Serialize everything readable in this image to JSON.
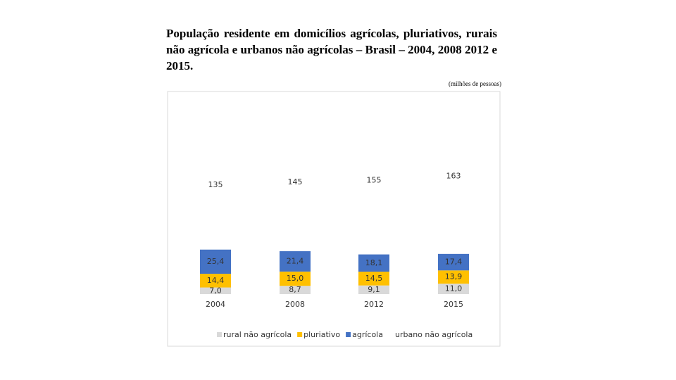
{
  "chart_data": {
    "type": "stacked_bar",
    "title": "População residente em domicílios agrícolas, pluriativos, rurais não agrícola e urbanos não agrícolas – Brasil – 2004, 2008 2012 e 2015.",
    "subtitle": "(milhões de pessoas)",
    "categories": [
      "2004",
      "2008",
      "2012",
      "2015"
    ],
    "series": [
      {
        "name": "rural não agrícola",
        "color": "#d9d9d9",
        "values": [
          7.0,
          8.7,
          9.1,
          11.0
        ],
        "value_labels": [
          "7,0",
          "8,7",
          "9,1",
          "11,0"
        ]
      },
      {
        "name": "pluriativo",
        "color": "#ffc000",
        "values": [
          14.4,
          15.0,
          14.5,
          13.9
        ],
        "value_labels": [
          "14,4",
          "15,0",
          "14,5",
          "13,9"
        ]
      },
      {
        "name": "agrícola",
        "color": "#4472c4",
        "values": [
          25.4,
          21.4,
          18.1,
          17.4
        ],
        "value_labels": [
          "25,4",
          "21,4",
          "18,1",
          "17,4"
        ]
      },
      {
        "name": "urbano não agrícola",
        "color": "#ffffff",
        "values": [
          135,
          145,
          155,
          163
        ]
      }
    ]
  }
}
